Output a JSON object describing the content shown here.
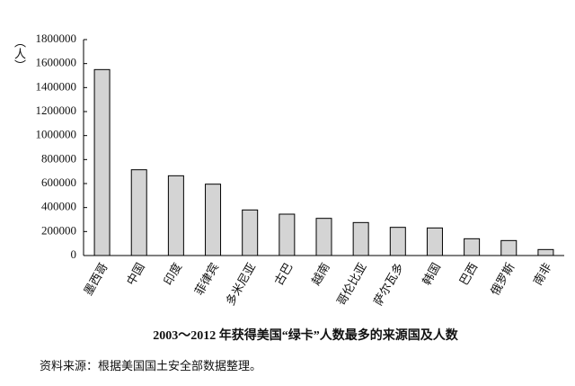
{
  "chart_data": {
    "type": "bar",
    "title": "2003～2012 年获得美国“绿卡”人数最多的来源国及人数",
    "source": "资料来源：根据美国国土安全部数据整理。",
    "ylabel": "（人）",
    "categories": [
      "墨西哥",
      "中国",
      "印度",
      "菲律宾",
      "多米尼亚",
      "古巴",
      "越南",
      "哥伦比亚",
      "萨尔瓦多",
      "韩国",
      "巴西",
      "俄罗斯",
      "南非"
    ],
    "values": [
      1550000,
      715000,
      665000,
      595000,
      380000,
      345000,
      310000,
      275000,
      235000,
      230000,
      140000,
      125000,
      50000
    ],
    "color": "#d4d4d4",
    "ylim": [
      0,
      1800000
    ],
    "yticks": [
      0,
      200000,
      400000,
      600000,
      800000,
      1000000,
      1200000,
      1400000,
      1600000,
      1800000
    ],
    "grid": false
  }
}
